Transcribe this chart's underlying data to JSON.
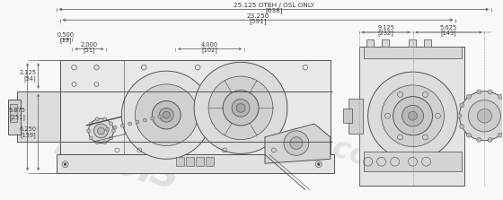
{
  "bg_color": "#f8f8f5",
  "line_color": "#4a4a4a",
  "dim_color": "#3a3a3a",
  "dim_line_color": "#555555",
  "watermark_color": "#d0d0d0",
  "fig_width": 5.6,
  "fig_height": 2.23,
  "dpi": 100,
  "title_top": "25.125 OTBH / OSL ONLY",
  "title_top_sub": "[638]",
  "dim_23250": "23.250",
  "dim_23250_sub": "[591]",
  "dim_0500": "0.500",
  "dim_0500_sub": "[13]",
  "dim_2000": "2.000",
  "dim_2000_sub": "[51]",
  "dim_4000": "4.000",
  "dim_4000_sub": "[102]",
  "dim_2125": "2.125",
  "dim_2125_sub": "[54]",
  "dim_9875": "9.875",
  "dim_9875_sub": "[251]",
  "dim_6250": "6.250",
  "dim_6250_sub": "[159]",
  "dim_9125": "9.125",
  "dim_9125_sub": "[232]",
  "dim_5625": "5.625",
  "dim_5625_sub": "[143]"
}
